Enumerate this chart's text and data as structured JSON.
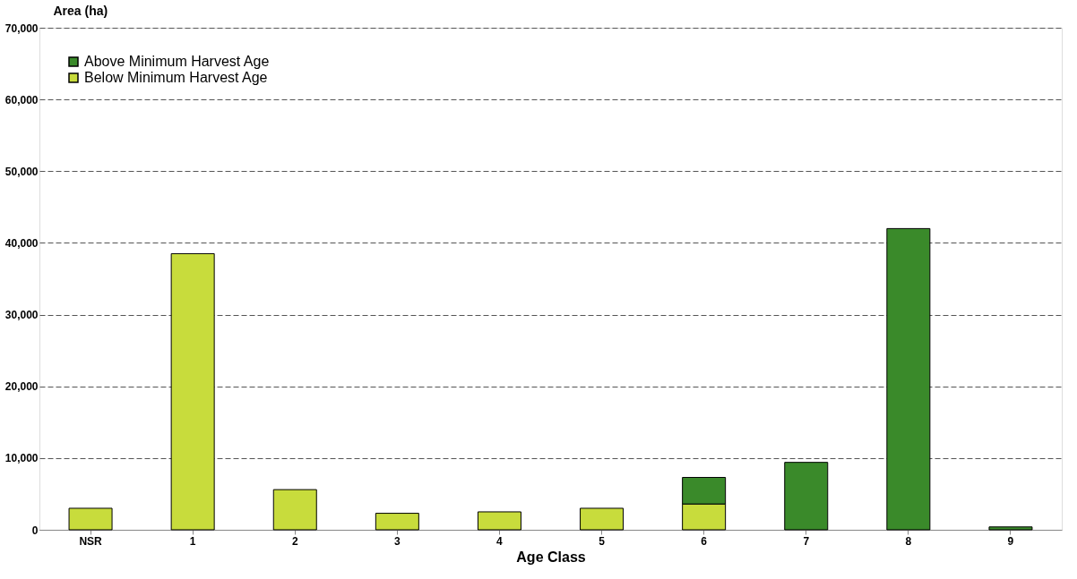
{
  "chart_data": {
    "type": "bar",
    "stacked": true,
    "xlabel": "Age Class",
    "ylabel": "Area (ha)",
    "categories": [
      "NSR",
      "1",
      "2",
      "3",
      "4",
      "5",
      "6",
      "7",
      "8",
      "9"
    ],
    "series": [
      {
        "name": "Below Minimum Harvest Age",
        "color": "#c8dc3c",
        "values": [
          3000,
          38500,
          5600,
          2300,
          2500,
          3000,
          3600,
          null,
          null,
          null
        ]
      },
      {
        "name": "Above Minimum Harvest Age",
        "color": "#3a8a2a",
        "values": [
          null,
          null,
          null,
          null,
          null,
          null,
          3700,
          9400,
          42000,
          400
        ]
      }
    ],
    "ylim": [
      0,
      70000
    ],
    "yticks": [
      {
        "value": 0,
        "label": "0"
      },
      {
        "value": 10000,
        "label": "10,000"
      },
      {
        "value": 20000,
        "label": "20,000"
      },
      {
        "value": 30000,
        "label": "30,000"
      },
      {
        "value": 40000,
        "label": "40,000"
      },
      {
        "value": 50000,
        "label": "50,000"
      },
      {
        "value": 60000,
        "label": "60,000"
      },
      {
        "value": 70000,
        "label": "70,000"
      }
    ],
    "grid": "y",
    "legend": "top left"
  }
}
